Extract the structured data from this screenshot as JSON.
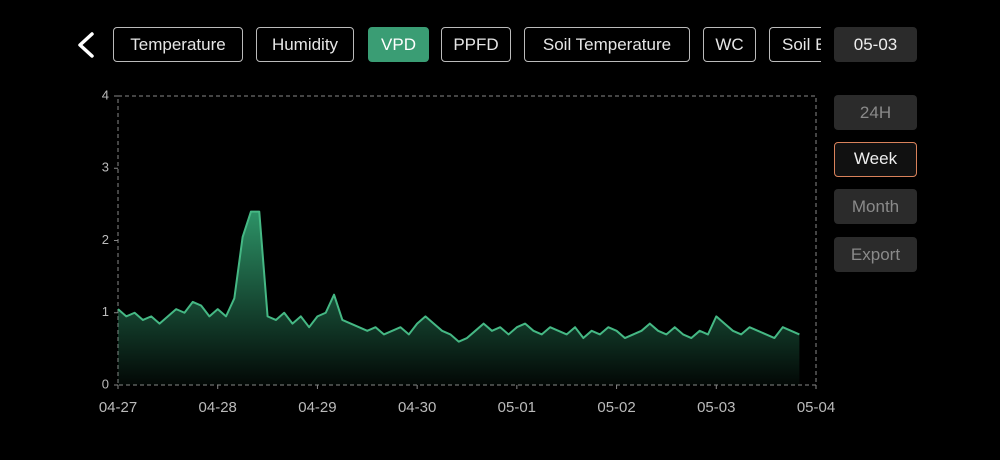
{
  "tabs": [
    "Temperature",
    "Humidity",
    "VPD",
    "PPFD",
    "Soil Temperature",
    "WC",
    "Soil E"
  ],
  "date": "05-03",
  "ranges": [
    "24H",
    "Week",
    "Month",
    "Export"
  ],
  "chart_data": {
    "type": "area",
    "color": "#45b884",
    "x": [
      0,
      2,
      4,
      6,
      8,
      10,
      12,
      14,
      16,
      18,
      20,
      22,
      24,
      26,
      28,
      30,
      32,
      34,
      36,
      38,
      40,
      42,
      44,
      46,
      48,
      50,
      52,
      54,
      56,
      58,
      60,
      62,
      64,
      66,
      68,
      70,
      72,
      74,
      76,
      78,
      80,
      82,
      84,
      86,
      88,
      90,
      92,
      94,
      96,
      98,
      100,
      102,
      104,
      106,
      108,
      110,
      112,
      114,
      116,
      118,
      120,
      122,
      124,
      126,
      128,
      130,
      132,
      134,
      136,
      138,
      140,
      142,
      144,
      146,
      148,
      150,
      152,
      154,
      156,
      158,
      160,
      162,
      164
    ],
    "values": [
      1.05,
      0.95,
      1.0,
      0.9,
      0.95,
      0.85,
      0.95,
      1.05,
      1.0,
      1.15,
      1.1,
      0.95,
      1.05,
      0.95,
      1.2,
      2.05,
      2.4,
      2.4,
      0.95,
      0.9,
      1.0,
      0.85,
      0.95,
      0.8,
      0.95,
      1.0,
      1.25,
      0.9,
      0.85,
      0.8,
      0.75,
      0.8,
      0.7,
      0.75,
      0.8,
      0.7,
      0.85,
      0.95,
      0.85,
      0.75,
      0.7,
      0.6,
      0.65,
      0.75,
      0.85,
      0.75,
      0.8,
      0.7,
      0.8,
      0.85,
      0.75,
      0.7,
      0.8,
      0.75,
      0.7,
      0.8,
      0.65,
      0.75,
      0.7,
      0.8,
      0.75,
      0.65,
      0.7,
      0.75,
      0.85,
      0.75,
      0.7,
      0.8,
      0.7,
      0.65,
      0.75,
      0.7,
      0.95,
      0.85,
      0.75,
      0.7,
      0.8,
      0.75,
      0.7,
      0.65,
      0.8,
      0.75,
      0.7
    ],
    "xlim": [
      0,
      168
    ],
    "xticks": [
      {
        "value": 0,
        "label": "04-27"
      },
      {
        "value": 24,
        "label": "04-28"
      },
      {
        "value": 48,
        "label": "04-29"
      },
      {
        "value": 72,
        "label": "04-30"
      },
      {
        "value": 96,
        "label": "05-01"
      },
      {
        "value": 120,
        "label": "05-02"
      },
      {
        "value": 144,
        "label": "05-03"
      },
      {
        "value": 168,
        "label": "05-04"
      }
    ],
    "ylim": [
      0,
      4
    ],
    "yticks": [
      0,
      1,
      2,
      3,
      4
    ]
  }
}
